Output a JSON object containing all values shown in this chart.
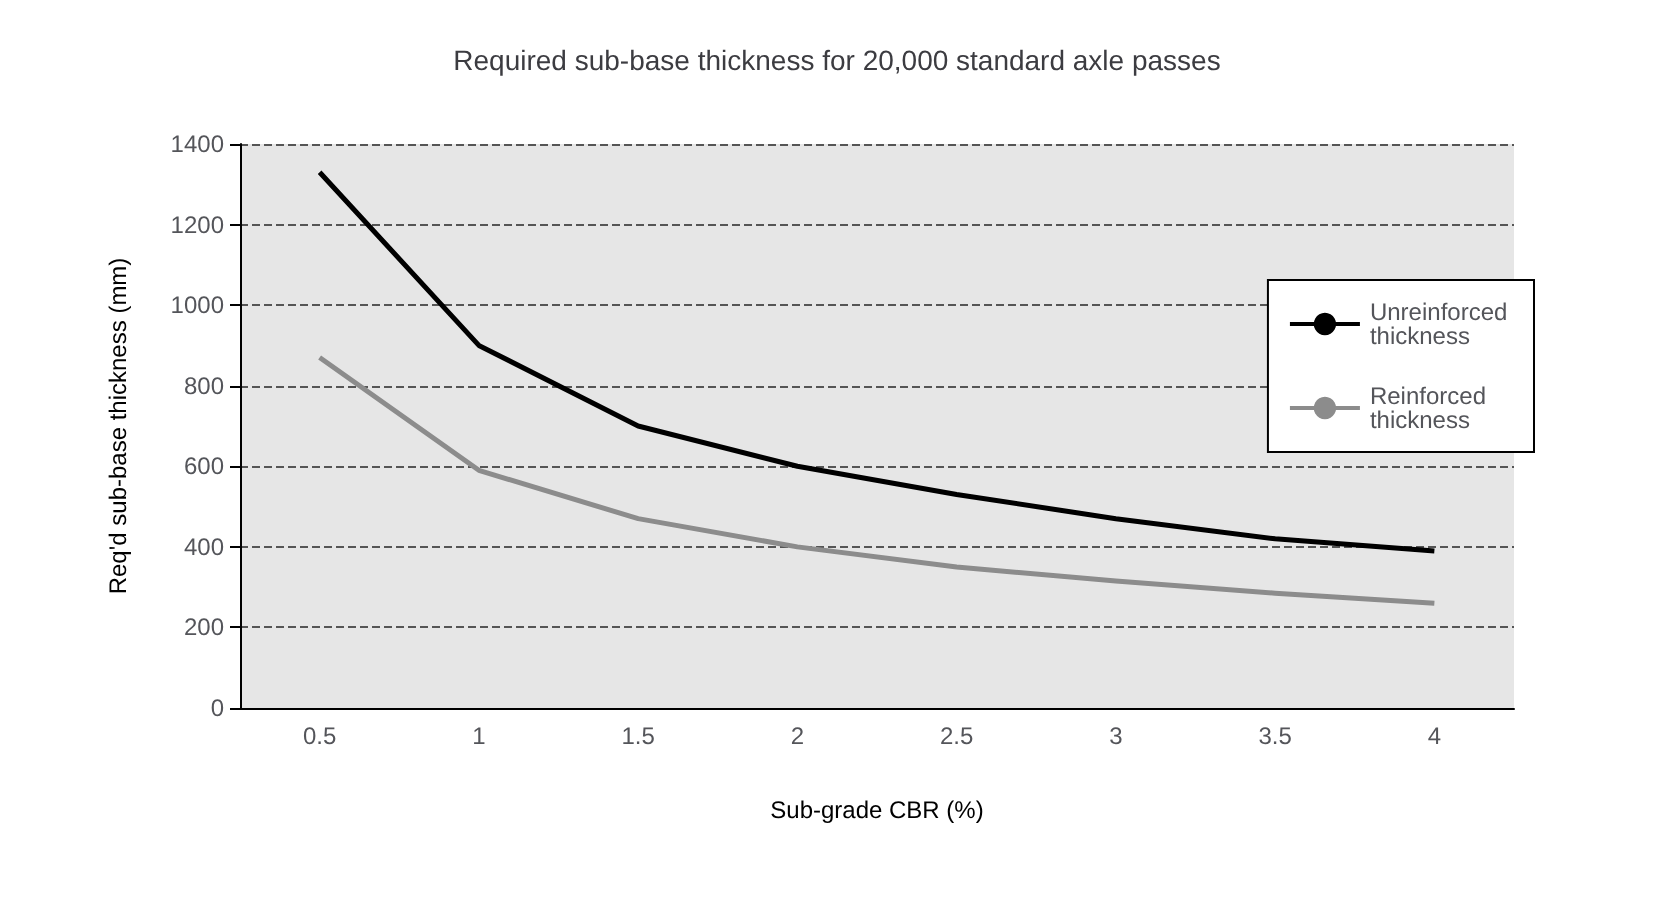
{
  "chart_data": {
    "type": "line",
    "title": "Required sub-base thickness for 20,000 standard axle passes",
    "xlabel": "Sub-grade CBR (%)",
    "ylabel": "Req'd sub-base thickness (mm)",
    "categories": [
      "0.5",
      "1",
      "1.5",
      "2",
      "2.5",
      "3",
      "3.5",
      "4"
    ],
    "series": [
      {
        "name": "Unreinforced thickness",
        "color": "#000000",
        "values": [
          1330,
          900,
          700,
          600,
          530,
          470,
          420,
          390
        ]
      },
      {
        "name": "Reinforced thickness",
        "color": "#8c8c8c",
        "values": [
          870,
          590,
          470,
          400,
          350,
          315,
          285,
          260
        ]
      }
    ],
    "ylim": [
      0,
      1400
    ],
    "yticks": [
      0,
      200,
      400,
      600,
      800,
      1000,
      1200,
      1400
    ],
    "grid": "y",
    "legend": "right",
    "marker": "none"
  }
}
